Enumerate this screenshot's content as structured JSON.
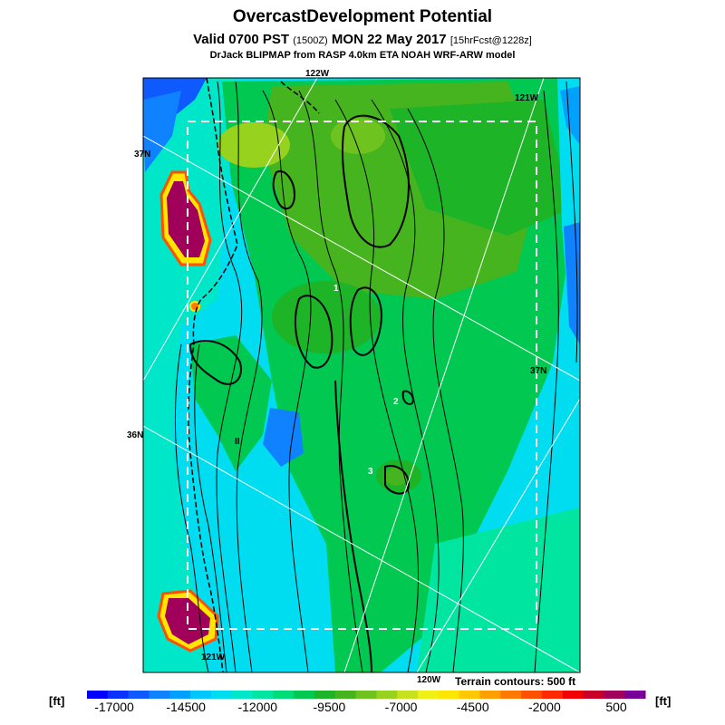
{
  "header": {
    "title": "OvercastDevelopment Potential",
    "valid": "Valid 0700 PST",
    "utc": "(1500Z)",
    "date": "MON 22 May 2017",
    "fcst": "[15hrFcst@1228z]",
    "model": "DrJack BLIPMAP from RASP 4.0km ETA NOAH WRF-ARW model"
  },
  "map_labels": {
    "lon_122_top": "122W",
    "lon_121_top": "121W",
    "lat_37_left": "37N",
    "lat_37_right": "37N",
    "lat_36_left": "36N",
    "lon_121_bottom": "121W",
    "lon_120_bottom": "120W",
    "contour_1": "1",
    "contour_2": "2",
    "contour_3": "3",
    "contour_ii": "II"
  },
  "terrain_note": "Terrain contours: 500 ft",
  "colorbar": {
    "unit_left": "[ft]",
    "unit_right": "[ft]",
    "ticks": [
      "-17000",
      "-14500",
      "-12000",
      "-9500",
      "-7000",
      "-4500",
      "-2000",
      "500"
    ],
    "colors": [
      "#0000ff",
      "#0a32ff",
      "#0f5aff",
      "#0f82ff",
      "#00a0ff",
      "#00c8ff",
      "#00dcf0",
      "#00e6c8",
      "#00e6a0",
      "#00dc78",
      "#00c850",
      "#1eb428",
      "#46b41e",
      "#6ec31e",
      "#96d21e",
      "#c8e11e",
      "#f0f014",
      "#ffe600",
      "#ffc800",
      "#ffa000",
      "#ff7800",
      "#ff5000",
      "#ff2800",
      "#f00000",
      "#c80028",
      "#a0005a",
      "#780096"
    ]
  }
}
